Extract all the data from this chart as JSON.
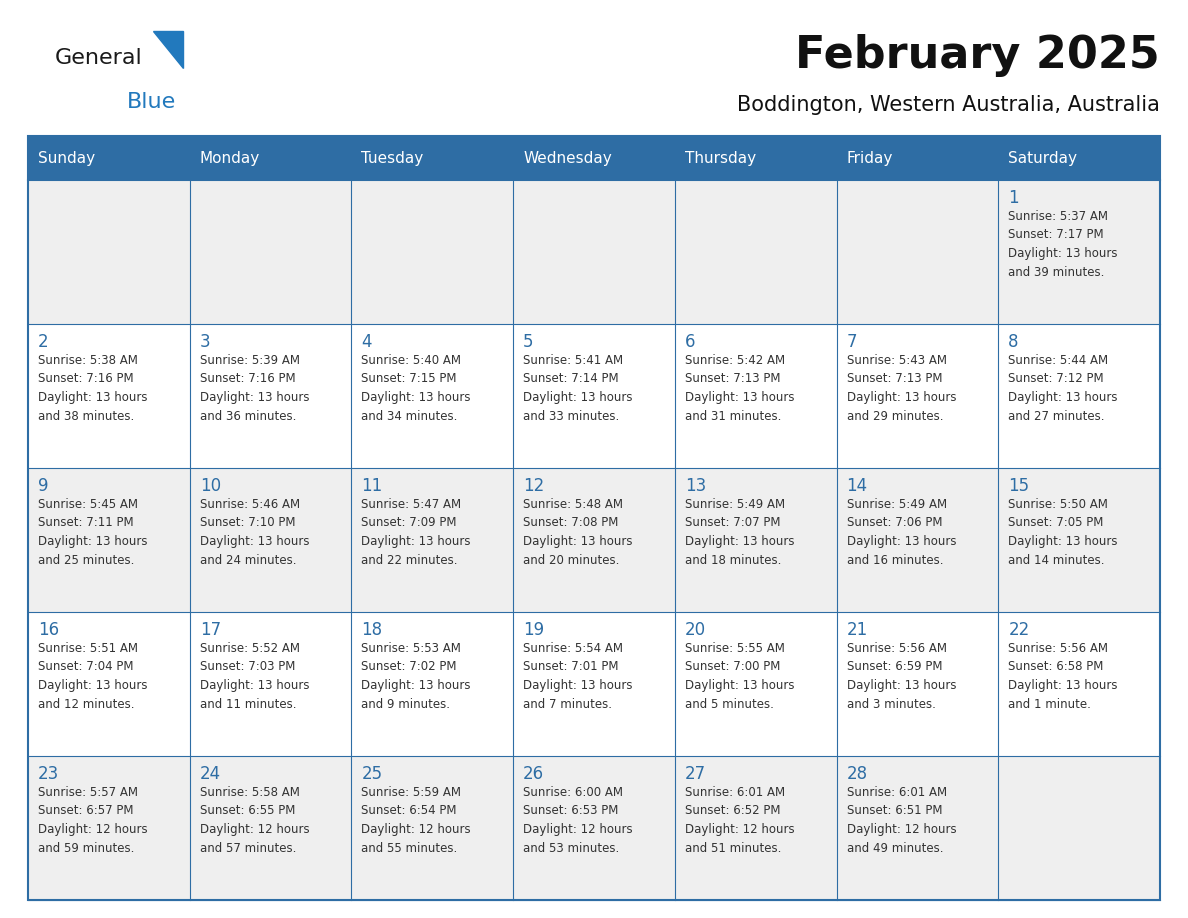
{
  "title": "February 2025",
  "subtitle": "Boddington, Western Australia, Australia",
  "header_bg": "#2E6DA4",
  "header_text": "#FFFFFF",
  "cell_bg_odd": "#EFEFEF",
  "cell_bg_even": "#FFFFFF",
  "day_number_color": "#2E6DA4",
  "info_text_color": "#333333",
  "border_color": "#2E6DA4",
  "days_of_week": [
    "Sunday",
    "Monday",
    "Tuesday",
    "Wednesday",
    "Thursday",
    "Friday",
    "Saturday"
  ],
  "weeks": [
    [
      {
        "day": null,
        "info": ""
      },
      {
        "day": null,
        "info": ""
      },
      {
        "day": null,
        "info": ""
      },
      {
        "day": null,
        "info": ""
      },
      {
        "day": null,
        "info": ""
      },
      {
        "day": null,
        "info": ""
      },
      {
        "day": 1,
        "info": "Sunrise: 5:37 AM\nSunset: 7:17 PM\nDaylight: 13 hours\nand 39 minutes."
      }
    ],
    [
      {
        "day": 2,
        "info": "Sunrise: 5:38 AM\nSunset: 7:16 PM\nDaylight: 13 hours\nand 38 minutes."
      },
      {
        "day": 3,
        "info": "Sunrise: 5:39 AM\nSunset: 7:16 PM\nDaylight: 13 hours\nand 36 minutes."
      },
      {
        "day": 4,
        "info": "Sunrise: 5:40 AM\nSunset: 7:15 PM\nDaylight: 13 hours\nand 34 minutes."
      },
      {
        "day": 5,
        "info": "Sunrise: 5:41 AM\nSunset: 7:14 PM\nDaylight: 13 hours\nand 33 minutes."
      },
      {
        "day": 6,
        "info": "Sunrise: 5:42 AM\nSunset: 7:13 PM\nDaylight: 13 hours\nand 31 minutes."
      },
      {
        "day": 7,
        "info": "Sunrise: 5:43 AM\nSunset: 7:13 PM\nDaylight: 13 hours\nand 29 minutes."
      },
      {
        "day": 8,
        "info": "Sunrise: 5:44 AM\nSunset: 7:12 PM\nDaylight: 13 hours\nand 27 minutes."
      }
    ],
    [
      {
        "day": 9,
        "info": "Sunrise: 5:45 AM\nSunset: 7:11 PM\nDaylight: 13 hours\nand 25 minutes."
      },
      {
        "day": 10,
        "info": "Sunrise: 5:46 AM\nSunset: 7:10 PM\nDaylight: 13 hours\nand 24 minutes."
      },
      {
        "day": 11,
        "info": "Sunrise: 5:47 AM\nSunset: 7:09 PM\nDaylight: 13 hours\nand 22 minutes."
      },
      {
        "day": 12,
        "info": "Sunrise: 5:48 AM\nSunset: 7:08 PM\nDaylight: 13 hours\nand 20 minutes."
      },
      {
        "day": 13,
        "info": "Sunrise: 5:49 AM\nSunset: 7:07 PM\nDaylight: 13 hours\nand 18 minutes."
      },
      {
        "day": 14,
        "info": "Sunrise: 5:49 AM\nSunset: 7:06 PM\nDaylight: 13 hours\nand 16 minutes."
      },
      {
        "day": 15,
        "info": "Sunrise: 5:50 AM\nSunset: 7:05 PM\nDaylight: 13 hours\nand 14 minutes."
      }
    ],
    [
      {
        "day": 16,
        "info": "Sunrise: 5:51 AM\nSunset: 7:04 PM\nDaylight: 13 hours\nand 12 minutes."
      },
      {
        "day": 17,
        "info": "Sunrise: 5:52 AM\nSunset: 7:03 PM\nDaylight: 13 hours\nand 11 minutes."
      },
      {
        "day": 18,
        "info": "Sunrise: 5:53 AM\nSunset: 7:02 PM\nDaylight: 13 hours\nand 9 minutes."
      },
      {
        "day": 19,
        "info": "Sunrise: 5:54 AM\nSunset: 7:01 PM\nDaylight: 13 hours\nand 7 minutes."
      },
      {
        "day": 20,
        "info": "Sunrise: 5:55 AM\nSunset: 7:00 PM\nDaylight: 13 hours\nand 5 minutes."
      },
      {
        "day": 21,
        "info": "Sunrise: 5:56 AM\nSunset: 6:59 PM\nDaylight: 13 hours\nand 3 minutes."
      },
      {
        "day": 22,
        "info": "Sunrise: 5:56 AM\nSunset: 6:58 PM\nDaylight: 13 hours\nand 1 minute."
      }
    ],
    [
      {
        "day": 23,
        "info": "Sunrise: 5:57 AM\nSunset: 6:57 PM\nDaylight: 12 hours\nand 59 minutes."
      },
      {
        "day": 24,
        "info": "Sunrise: 5:58 AM\nSunset: 6:55 PM\nDaylight: 12 hours\nand 57 minutes."
      },
      {
        "day": 25,
        "info": "Sunrise: 5:59 AM\nSunset: 6:54 PM\nDaylight: 12 hours\nand 55 minutes."
      },
      {
        "day": 26,
        "info": "Sunrise: 6:00 AM\nSunset: 6:53 PM\nDaylight: 12 hours\nand 53 minutes."
      },
      {
        "day": 27,
        "info": "Sunrise: 6:01 AM\nSunset: 6:52 PM\nDaylight: 12 hours\nand 51 minutes."
      },
      {
        "day": 28,
        "info": "Sunrise: 6:01 AM\nSunset: 6:51 PM\nDaylight: 12 hours\nand 49 minutes."
      },
      {
        "day": null,
        "info": ""
      }
    ]
  ],
  "logo_text1": "General",
  "logo_text2": "Blue",
  "logo_color1": "#1a1a1a",
  "logo_color2": "#2279BD",
  "logo_triangle_color": "#2279BD",
  "title_fontsize": 32,
  "subtitle_fontsize": 15,
  "header_fontsize": 11,
  "day_num_fontsize": 12,
  "info_fontsize": 8.5
}
